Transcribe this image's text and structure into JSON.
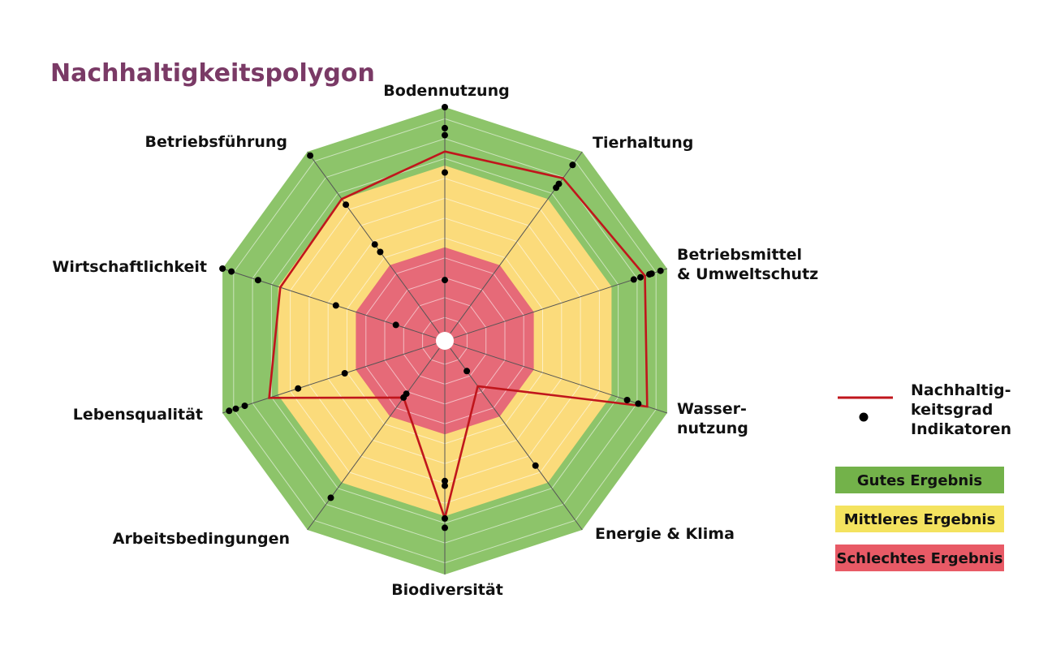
{
  "chart_data": {
    "type": "radar",
    "title": "Nachhaltigkeitspolygon",
    "scale": [
      0,
      100
    ],
    "axes": [
      {
        "label": [
          "Bodennutzung"
        ],
        "indicators": [
          100,
          91,
          88,
          72,
          26
        ],
        "degree": 81
      },
      {
        "label": [
          "Tierhaltung"
        ],
        "indicators": [
          93,
          83,
          81
        ],
        "degree": 86
      },
      {
        "label": [
          "Betriebsmittel",
          "& Umweltschutz"
        ],
        "indicators": [
          97,
          93,
          92,
          88,
          85
        ],
        "degree": 90
      },
      {
        "label": [
          "Wasser-",
          "nutzung"
        ],
        "indicators": [
          87,
          82
        ],
        "degree": 91
      },
      {
        "label": [
          "Energie & Klima"
        ],
        "indicators": [
          66,
          16
        ],
        "degree": 24
      },
      {
        "label": [
          "Biodiversität"
        ],
        "indicators": [
          80,
          76,
          62,
          60
        ],
        "degree": 76
      },
      {
        "label": [
          "Arbeitsbedingungen"
        ],
        "indicators": [
          83,
          30,
          28
        ],
        "degree": 30
      },
      {
        "label": [
          "Lebensqualität"
        ],
        "indicators": [
          97,
          94,
          90,
          66,
          45
        ],
        "degree": 79
      },
      {
        "label": [
          "Wirtschaftlichkeit"
        ],
        "indicators": [
          100,
          96,
          84,
          49,
          22
        ],
        "degree": 74
      },
      {
        "label": [
          "Betriebsführung"
        ],
        "indicators": [
          98,
          72,
          51,
          47
        ],
        "degree": 75
      }
    ],
    "zones": [
      {
        "name": "Schlechtes Ergebnis",
        "from": 0,
        "to": 40,
        "color": "#e66a78"
      },
      {
        "name": "Mittleres Ergebnis",
        "from": 40,
        "to": 75,
        "color": "#fbdb7b"
      },
      {
        "name": "Gutes Ergebnis",
        "from": 75,
        "to": 100,
        "color": "#8dc46a"
      }
    ],
    "degree_color": "#c0161c",
    "indicator_color": "#000000"
  },
  "legend": {
    "degree_label": [
      "Nachhaltig-",
      "keitsgrad"
    ],
    "indicator_label": "Indikatoren",
    "zones": [
      {
        "label": "Gutes Ergebnis",
        "color": "#73b24a"
      },
      {
        "label": "Mittleres Ergebnis",
        "color": "#f4e35f"
      },
      {
        "label": "Schlechtes Ergebnis",
        "color": "#e85a66"
      }
    ]
  },
  "colors": {
    "title": "#7a3a66",
    "grid": "#ffffff",
    "spoke": "#555555"
  }
}
